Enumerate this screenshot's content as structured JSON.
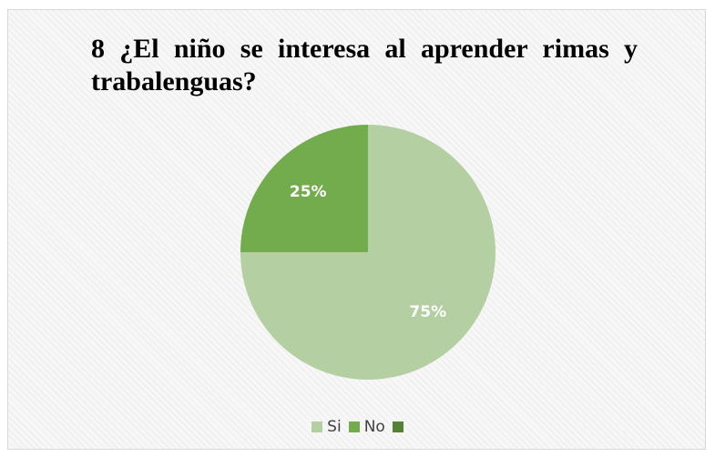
{
  "chart_data": {
    "type": "pie",
    "title": "8 ¿El niño se interesa al aprender rimas y trabalenguas?",
    "slices": [
      {
        "label": "Si",
        "value": 75,
        "data_label": "75%",
        "color": "#b4cfa1"
      },
      {
        "label": "No",
        "value": 25,
        "data_label": "25%",
        "color": "#72ac4d"
      }
    ],
    "legend": {
      "placement": "bottom",
      "entries": [
        {
          "label": "Si",
          "color": "#b4cfa1"
        },
        {
          "label": "No",
          "color": "#72ac4d"
        },
        {
          "label": "",
          "color": "#538135"
        }
      ]
    }
  }
}
